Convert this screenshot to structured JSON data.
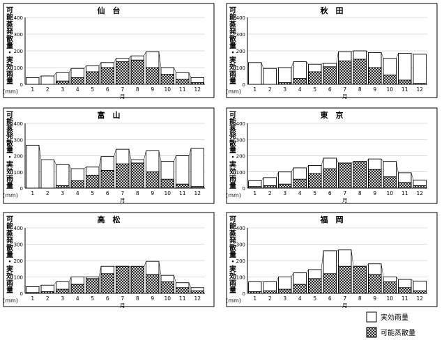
{
  "labels": {
    "ylabel": [
      "可",
      "能",
      "蒸",
      "発",
      "散",
      "量",
      "・",
      "実",
      "効",
      "雨",
      "量"
    ],
    "unit": "(mm)",
    "xlabel": "月"
  },
  "legend": {
    "rain_label": "実効雨量",
    "evap_label": "可能蒸散量"
  },
  "chart_data": [
    {
      "type": "bar",
      "title": "仙　台",
      "categories": [
        "1",
        "2",
        "3",
        "4",
        "5",
        "6",
        "7",
        "8",
        "9",
        "10",
        "11",
        "12"
      ],
      "ylim": [
        0,
        400
      ],
      "yticks": [
        "0",
        "100",
        "200",
        "300",
        "400"
      ],
      "series": [
        {
          "name": "実効雨量",
          "values": [
            40,
            50,
            70,
            95,
            110,
            130,
            155,
            170,
            195,
            100,
            70,
            40
          ]
        },
        {
          "name": "可能蒸散量",
          "values": [
            0,
            0,
            20,
            40,
            75,
            100,
            135,
            145,
            100,
            60,
            30,
            10
          ]
        }
      ]
    },
    {
      "type": "bar",
      "title": "秋　田",
      "categories": [
        "1",
        "2",
        "3",
        "4",
        "5",
        "6",
        "7",
        "8",
        "9",
        "10",
        "11",
        "12"
      ],
      "ylim": [
        0,
        400
      ],
      "yticks": [
        "0",
        "100",
        "200",
        "300",
        "400"
      ],
      "series": [
        {
          "name": "実効雨量",
          "values": [
            130,
            95,
            100,
            135,
            120,
            125,
            195,
            200,
            190,
            155,
            185,
            180
          ]
        },
        {
          "name": "可能蒸散量",
          "values": [
            0,
            0,
            10,
            35,
            75,
            105,
            140,
            150,
            100,
            55,
            25,
            5
          ]
        }
      ]
    },
    {
      "type": "bar",
      "title": "富　山",
      "categories": [
        "1",
        "2",
        "3",
        "4",
        "5",
        "6",
        "7",
        "8",
        "9",
        "10",
        "11",
        "12"
      ],
      "ylim": [
        0,
        400
      ],
      "yticks": [
        "0",
        "100",
        "200",
        "300",
        "400"
      ],
      "series": [
        {
          "name": "実効雨量",
          "values": [
            265,
            175,
            145,
            120,
            130,
            195,
            240,
            175,
            230,
            165,
            200,
            245
          ]
        },
        {
          "name": "可能蒸散量",
          "values": [
            0,
            0,
            15,
            45,
            80,
            110,
            150,
            155,
            100,
            55,
            25,
            10
          ]
        }
      ]
    },
    {
      "type": "bar",
      "title": "東　京",
      "categories": [
        "1",
        "2",
        "3",
        "4",
        "5",
        "6",
        "7",
        "8",
        "9",
        "10",
        "11",
        "12"
      ],
      "ylim": [
        0,
        400
      ],
      "yticks": [
        "0",
        "100",
        "200",
        "300",
        "400"
      ],
      "series": [
        {
          "name": "実効雨量",
          "values": [
            45,
            65,
            100,
            125,
            140,
            185,
            155,
            160,
            180,
            165,
            95,
            50
          ]
        },
        {
          "name": "可能蒸散量",
          "values": [
            10,
            15,
            25,
            55,
            90,
            120,
            155,
            165,
            115,
            70,
            35,
            15
          ]
        }
      ]
    },
    {
      "type": "bar",
      "title": "高　松",
      "categories": [
        "1",
        "2",
        "3",
        "4",
        "5",
        "6",
        "7",
        "8",
        "9",
        "10",
        "11",
        "12"
      ],
      "ylim": [
        0,
        400
      ],
      "yticks": [
        "0",
        "100",
        "200",
        "300",
        "400"
      ],
      "series": [
        {
          "name": "実効雨量",
          "values": [
            40,
            50,
            70,
            100,
            100,
            165,
            165,
            160,
            195,
            110,
            65,
            35
          ]
        },
        {
          "name": "可能蒸散量",
          "values": [
            5,
            10,
            25,
            55,
            90,
            120,
            165,
            165,
            115,
            70,
            35,
            15
          ]
        }
      ]
    },
    {
      "type": "bar",
      "title": "福　岡",
      "categories": [
        "1",
        "2",
        "3",
        "4",
        "5",
        "6",
        "7",
        "8",
        "9",
        "10",
        "11",
        "12"
      ],
      "ylim": [
        0,
        400
      ],
      "yticks": [
        "0",
        "100",
        "200",
        "300",
        "400"
      ],
      "series": [
        {
          "name": "実効雨量",
          "values": [
            70,
            70,
            100,
            125,
            145,
            260,
            265,
            165,
            180,
            100,
            85,
            75
          ]
        },
        {
          "name": "可能蒸散量",
          "values": [
            10,
            15,
            25,
            55,
            90,
            120,
            165,
            165,
            115,
            70,
            35,
            15
          ]
        }
      ]
    }
  ]
}
